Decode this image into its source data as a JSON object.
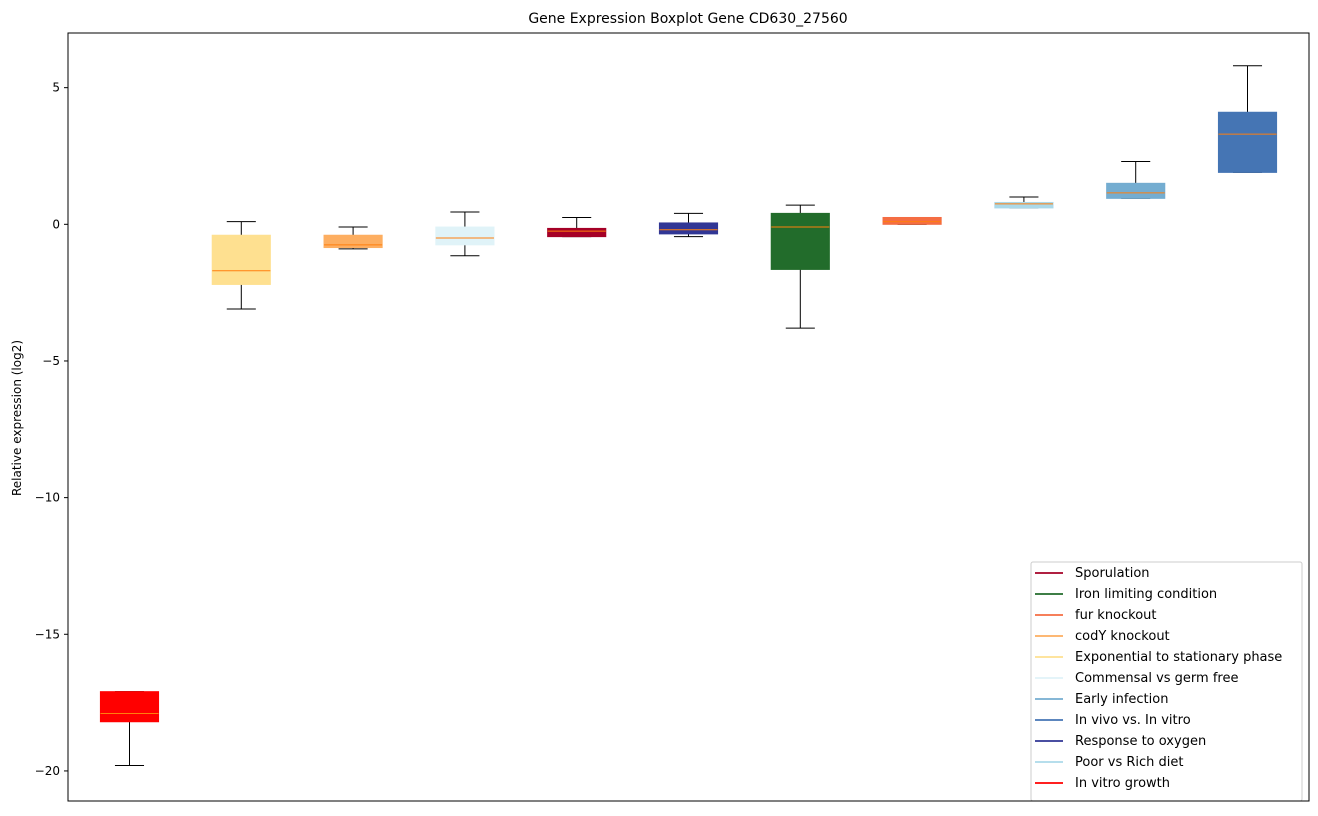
{
  "chart_data": {
    "type": "boxplot",
    "title": "Gene Expression Boxplot Gene CD630_27560",
    "xlabel": "",
    "ylabel": "Relative expression (log2)",
    "ylim": [
      -21.1,
      7.0
    ],
    "yticks": [
      5,
      0,
      -5,
      -10,
      -15,
      -20
    ],
    "ytick_labels": [
      "5",
      "0",
      "−5",
      "−10",
      "−15",
      "−20"
    ],
    "grid": false,
    "legend_position": "bottom-right",
    "median_color": "#ff7f0e",
    "boxes": [
      {
        "name": "In vitro growth",
        "color": "#ff0000",
        "whisker_low": -19.8,
        "q1": -18.2,
        "median": -17.9,
        "q3": -17.1,
        "whisker_high": -17.1
      },
      {
        "name": "Exponential to stationary phase",
        "color": "#fee090",
        "whisker_low": -3.1,
        "q1": -2.2,
        "median": -1.7,
        "q3": -0.4,
        "whisker_high": 0.1
      },
      {
        "name": "codY knockout",
        "color": "#fdae61",
        "whisker_low": -0.9,
        "q1": -0.85,
        "median": -0.75,
        "q3": -0.4,
        "whisker_high": -0.1
      },
      {
        "name": "Commensal vs germ free",
        "color": "#e0f3f8",
        "whisker_low": -1.15,
        "q1": -0.75,
        "median": -0.5,
        "q3": -0.1,
        "whisker_high": 0.45
      },
      {
        "name": "Sporulation",
        "color": "#a50026",
        "whisker_low": -0.45,
        "q1": -0.45,
        "median": -0.25,
        "q3": -0.15,
        "whisker_high": 0.25
      },
      {
        "name": "Response to oxygen",
        "color": "#313695",
        "whisker_low": -0.45,
        "q1": -0.35,
        "median": -0.2,
        "q3": 0.05,
        "whisker_high": 0.4
      },
      {
        "name": "Iron limiting condition",
        "color": "#226c2b",
        "whisker_low": -3.8,
        "q1": -1.65,
        "median": -0.1,
        "q3": 0.4,
        "whisker_high": 0.7
      },
      {
        "name": "fur knockout",
        "color": "#f46d43",
        "whisker_low": 0.0,
        "q1": 0.0,
        "median": 0.1,
        "q3": 0.25,
        "whisker_high": 0.25
      },
      {
        "name": "Poor vs Rich diet",
        "color": "#abd9e9",
        "whisker_low": 0.6,
        "q1": 0.6,
        "median": 0.75,
        "q3": 0.8,
        "whisker_high": 1.0
      },
      {
        "name": "Early infection",
        "color": "#74add1",
        "whisker_low": 0.95,
        "q1": 0.95,
        "median": 1.15,
        "q3": 1.5,
        "whisker_high": 2.3
      },
      {
        "name": "In vivo vs. In vitro",
        "color": "#4575b4",
        "whisker_low": 1.9,
        "q1": 1.9,
        "median": 3.3,
        "q3": 4.1,
        "whisker_high": 5.8
      }
    ],
    "legend": [
      {
        "label": "Sporulation",
        "color": "#a50026"
      },
      {
        "label": "Iron limiting condition",
        "color": "#226c2b"
      },
      {
        "label": "fur knockout",
        "color": "#f46d43"
      },
      {
        "label": "codY knockout",
        "color": "#fdae61"
      },
      {
        "label": "Exponential to stationary phase",
        "color": "#fee090"
      },
      {
        "label": "Commensal vs germ free",
        "color": "#e0f3f8"
      },
      {
        "label": "Early infection",
        "color": "#74add1"
      },
      {
        "label": "In vivo vs. In vitro",
        "color": "#4575b4"
      },
      {
        "label": "Response to oxygen",
        "color": "#313695"
      },
      {
        "label": "Poor vs Rich diet",
        "color": "#abd9e9"
      },
      {
        "label": "In vitro growth",
        "color": "#ff0000"
      }
    ]
  }
}
